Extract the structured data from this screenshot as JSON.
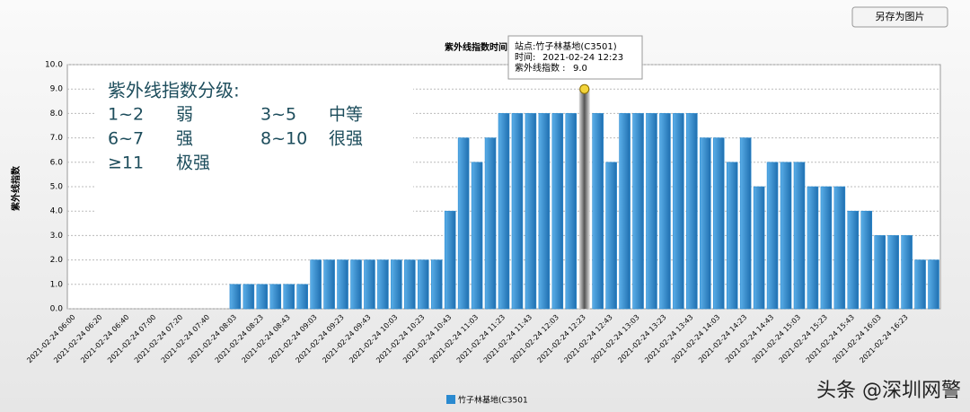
{
  "button": "另存为图片",
  "annotation": {
    "title": "紫外线指数分级:",
    "levels": [
      [
        "1~2",
        "弱"
      ],
      [
        "3~5",
        "中等"
      ],
      [
        "6~7",
        "强"
      ],
      [
        "8~10",
        "很强"
      ],
      [
        "≥11",
        "极强"
      ]
    ]
  },
  "tooltip": {
    "station": "站点:竹子林基地(C3501)",
    "time_prefix": "时间:",
    "time": "2021-02-24 12:23",
    "value_prefix": "紫外线指数 :",
    "value_label": "9.0"
  },
  "watermark": "头条 @深圳网警",
  "chart_data": {
    "type": "bar",
    "title": "紫外线指数时间",
    "y_label": "紫外线指数",
    "grid": true,
    "series": [
      {
        "name": "竹子林基地(C3501",
        "color": "#2a8ad0",
        "values": [
          null,
          null,
          null,
          null,
          null,
          null,
          null,
          null,
          null,
          null,
          null,
          null,
          1,
          1,
          1,
          1,
          1,
          1,
          2,
          2,
          2,
          2,
          2,
          2,
          2,
          2,
          2,
          2,
          4,
          7,
          6,
          7,
          8,
          8,
          8,
          8,
          8,
          8,
          9,
          8,
          6,
          8,
          8,
          8,
          8,
          8,
          8,
          7,
          7,
          6,
          7,
          5,
          6,
          6,
          6,
          5,
          5,
          5,
          4,
          4,
          3,
          3,
          3,
          2,
          2
        ]
      }
    ],
    "categories": [
      "2021-02-24 06:00",
      null,
      "2021-02-24 06:20",
      null,
      "2021-02-24 06:40",
      null,
      "2021-02-24 07:00",
      null,
      "2021-02-24 07:20",
      null,
      "2021-02-24 07:40",
      null,
      "2021-02-24 08:03",
      null,
      "2021-02-24 08:23",
      null,
      "2021-02-24 08:43",
      null,
      "2021-02-24 09:03",
      null,
      "2021-02-24 09:23",
      null,
      "2021-02-24 09:43",
      null,
      "2021-02-24 10:03",
      null,
      "2021-02-24 10:23",
      null,
      "2021-02-24 10:43",
      null,
      "2021-02-24 11:03",
      null,
      "2021-02-24 11:23",
      null,
      "2021-02-24 11:43",
      null,
      "2021-02-24 12:03",
      null,
      "2021-02-24 12:23",
      null,
      "2021-02-24 12:43",
      null,
      "2021-02-24 13:03",
      null,
      "2021-02-24 13:23",
      null,
      "2021-02-24 13:43",
      null,
      "2021-02-24 14:03",
      null,
      "2021-02-24 14:23",
      null,
      "2021-02-24 14:43",
      null,
      "2021-02-24 15:03",
      null,
      "2021-02-24 15:23",
      null,
      "2021-02-24 15:43",
      null,
      "2021-02-24 16:03",
      null,
      "2021-02-24 16:23",
      null,
      null
    ],
    "ylim": [
      0,
      10
    ],
    "yticks": [
      {
        "value": 0,
        "label": "0.0"
      },
      {
        "value": 1,
        "label": "1.0"
      },
      {
        "value": 2,
        "label": "2.0"
      },
      {
        "value": 3,
        "label": "3.0"
      },
      {
        "value": 4,
        "label": "4.0"
      },
      {
        "value": 5,
        "label": "5.0"
      },
      {
        "value": 6,
        "label": "6.0"
      },
      {
        "value": 7,
        "label": "7.0"
      },
      {
        "value": 8,
        "label": "8.0"
      },
      {
        "value": 9,
        "label": "9.0"
      },
      {
        "value": 10,
        "label": "10.0"
      }
    ]
  }
}
